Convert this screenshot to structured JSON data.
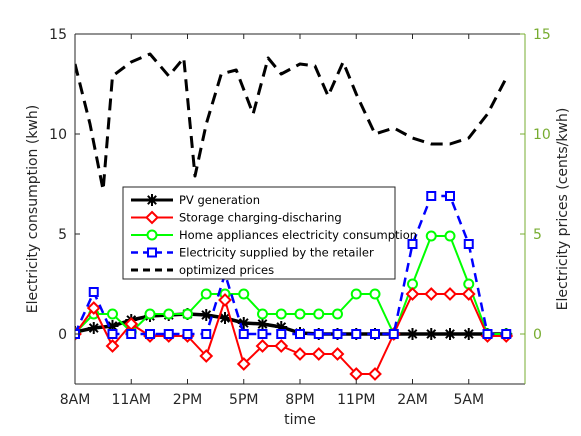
{
  "chart_data": {
    "type": "line",
    "title": "",
    "xlabel": "time",
    "ylabel_left": "Electricity consumption (kwh)",
    "ylabel_right": "Electricity prices (cents/kwh)",
    "x_ticks": [
      {
        "x": 1,
        "label": "8AM"
      },
      {
        "x": 4,
        "label": "11AM"
      },
      {
        "x": 7,
        "label": "2PM"
      },
      {
        "x": 10,
        "label": "5PM"
      },
      {
        "x": 13,
        "label": "8PM"
      },
      {
        "x": 16,
        "label": "11PM"
      },
      {
        "x": 19,
        "label": "2AM"
      },
      {
        "x": 22,
        "label": "5AM"
      }
    ],
    "xlim": [
      1,
      25
    ],
    "ylim_left": [
      -2.5,
      15
    ],
    "ylim_right": [
      -2.5,
      15
    ],
    "y_ticks_left": [
      0,
      5,
      10,
      15
    ],
    "y_ticks_right": [
      0,
      5,
      10,
      15
    ],
    "grid": false,
    "legend_position": "center-left",
    "series": [
      {
        "name": "PV generation",
        "axis": "left",
        "color": "#000000",
        "marker": "star",
        "dash": "solid",
        "width": 3.5,
        "x": [
          1,
          2,
          3,
          4,
          5,
          6,
          7,
          8,
          9,
          10,
          11,
          12,
          13,
          14,
          15,
          16,
          17,
          18,
          19,
          20,
          21,
          22,
          23,
          24
        ],
        "y": [
          0.1,
          0.3,
          0.4,
          0.7,
          0.9,
          0.95,
          1.0,
          0.95,
          0.8,
          0.55,
          0.5,
          0.35,
          0.05,
          0,
          0,
          0,
          0,
          0,
          0,
          0,
          0,
          0,
          0,
          0
        ]
      },
      {
        "name": "Storage charging-discharing",
        "axis": "left",
        "color": "#ff0000",
        "marker": "diamond",
        "dash": "solid",
        "width": 2,
        "x": [
          1,
          2,
          3,
          4,
          5,
          6,
          7,
          8,
          9,
          10,
          11,
          12,
          13,
          14,
          15,
          16,
          17,
          18,
          19,
          20,
          21,
          22,
          23,
          24
        ],
        "y": [
          0,
          1.3,
          -0.6,
          0.5,
          -0.1,
          -0.1,
          -0.1,
          -1.1,
          1.7,
          -1.5,
          -0.6,
          -0.6,
          -1.0,
          -1.0,
          -1.0,
          -2.0,
          -2.0,
          0,
          2.0,
          2.0,
          2.0,
          2.0,
          -0.1,
          -0.1
        ]
      },
      {
        "name": "Home appliances electricity consumption",
        "axis": "left",
        "color": "#00ff00",
        "marker": "circle",
        "dash": "solid",
        "width": 2,
        "x": [
          1,
          2,
          3,
          4,
          5,
          6,
          7,
          8,
          9,
          10,
          11,
          12,
          13,
          14,
          15,
          16,
          17,
          18,
          19,
          20,
          21,
          22,
          23,
          24
        ],
        "y": [
          0.05,
          1.0,
          1.0,
          0.1,
          1.0,
          1.0,
          1.0,
          2.0,
          2.0,
          2.0,
          1.0,
          1.0,
          1.0,
          1.0,
          1.0,
          2.0,
          2.0,
          0,
          2.5,
          4.9,
          4.9,
          2.5,
          0,
          0
        ]
      },
      {
        "name": "Electricity supplied by the retailer",
        "axis": "left",
        "color": "#0000ff",
        "marker": "square",
        "dash": "dashed",
        "width": 2.5,
        "x": [
          1,
          2,
          3,
          4,
          5,
          6,
          7,
          8,
          9,
          10,
          11,
          12,
          13,
          14,
          15,
          16,
          17,
          18,
          19,
          20,
          21,
          22,
          23,
          24
        ],
        "y": [
          0,
          2.1,
          0,
          0,
          0,
          0,
          0,
          0,
          3.0,
          0,
          0,
          0,
          0,
          0,
          0,
          0,
          0,
          0,
          4.5,
          6.9,
          6.9,
          4.5,
          0,
          0
        ]
      },
      {
        "name": "optimized prices",
        "axis": "right",
        "color": "#000000",
        "marker": "none",
        "dash": "dashed",
        "width": 3,
        "x": [
          1,
          1.8,
          2.5,
          3,
          4,
          5,
          6,
          6.8,
          7.4,
          8,
          8.8,
          9.6,
          10.5,
          11.3,
          12,
          13,
          13.8,
          14.5,
          15.3,
          16,
          17,
          18,
          19,
          20,
          21,
          22,
          23,
          24
        ],
        "y": [
          13.5,
          10.5,
          7.2,
          12.9,
          13.6,
          14.0,
          12.9,
          13.8,
          7.9,
          10.5,
          13.0,
          13.2,
          11.0,
          13.8,
          13.0,
          13.5,
          13.4,
          11.9,
          13.6,
          12.0,
          10.0,
          10.3,
          9.8,
          9.5,
          9.5,
          9.8,
          11.0,
          12.8
        ]
      }
    ]
  }
}
